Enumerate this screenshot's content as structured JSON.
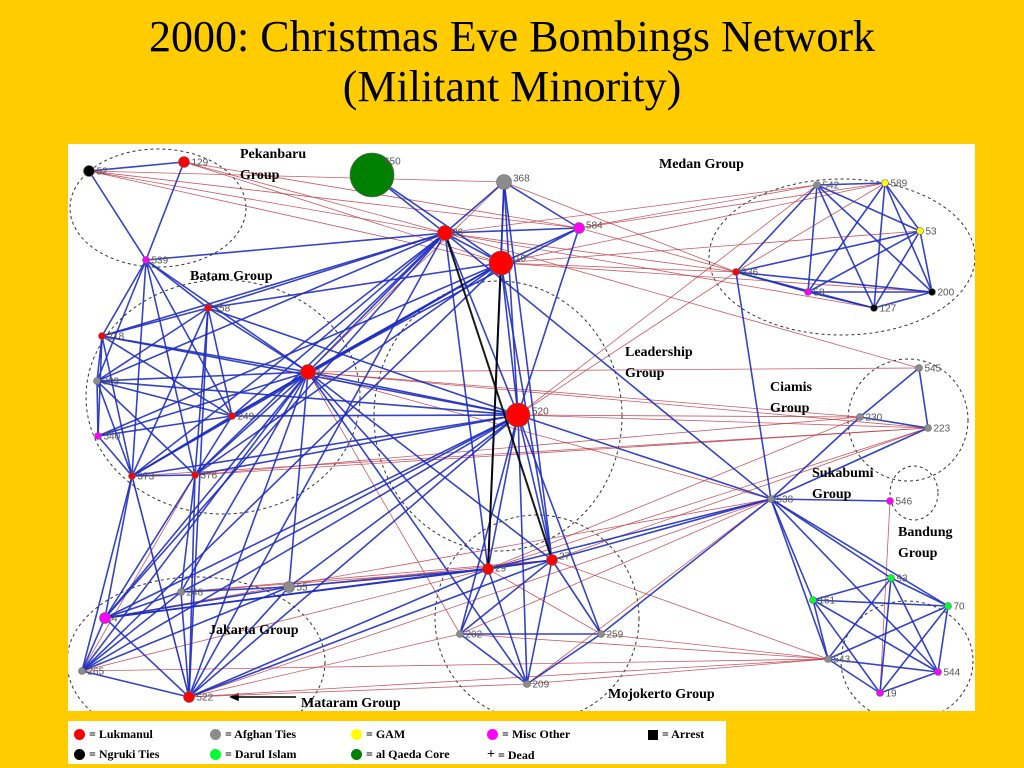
{
  "title": {
    "line1": "2000: Christmas Eve Bombings Network",
    "line2": "(Militant Minority)"
  },
  "groups": [
    {
      "id": "pekanbaru",
      "label_lines": [
        "Pekanbaru",
        "Group"
      ]
    },
    {
      "id": "medan",
      "label_lines": [
        "Medan Group"
      ]
    },
    {
      "id": "batam",
      "label_lines": [
        "Batam Group"
      ]
    },
    {
      "id": "leadership",
      "label_lines": [
        "Leadership",
        "Group"
      ]
    },
    {
      "id": "ciamis",
      "label_lines": [
        "Ciamis",
        "Group"
      ]
    },
    {
      "id": "sukabumi",
      "label_lines": [
        "Sukabumi",
        "Group"
      ]
    },
    {
      "id": "bandung",
      "label_lines": [
        "Bandung",
        "Group"
      ]
    },
    {
      "id": "jakarta",
      "label_lines": [
        "Jakarta Group"
      ]
    },
    {
      "id": "mataram",
      "label_lines": [
        "Mataram Group"
      ]
    },
    {
      "id": "mojokerto",
      "label_lines": [
        "Mojokerto Group"
      ]
    }
  ],
  "node_types": {
    "lukmanul": {
      "color": "#FF0000",
      "label": "= Lukmanul"
    },
    "ngruki": {
      "color": "#000000",
      "label": "= Ngruki Ties"
    },
    "afghan": {
      "color": "#8C8C8C",
      "label": "= Afghan Ties"
    },
    "darul": {
      "color": "#00FF33",
      "label": "= Darul Islam"
    },
    "gam": {
      "color": "#FFFF00",
      "label": "= GAM"
    },
    "alqaeda": {
      "color": "#008000",
      "label": "= al Qaeda Core"
    },
    "misc": {
      "color": "#FF00FF",
      "label": "= Misc Other"
    }
  },
  "legend": {
    "items": [
      {
        "type": "lukmanul",
        "label": "= Lukmanul"
      },
      {
        "type": "afghan",
        "label": "= Afghan Ties"
      },
      {
        "type": "gam",
        "label": "= GAM"
      },
      {
        "type": "misc",
        "label": "= Misc Other"
      },
      {
        "symbol": "square",
        "label": "= Arrest"
      },
      {
        "type": "ngruki",
        "label": "= Ngruki Ties"
      },
      {
        "type": "darul",
        "label": "= Darul Islam"
      },
      {
        "type": "alqaeda",
        "label": "= al Qaeda Core"
      },
      {
        "symbol": "+",
        "label": "= Dead"
      }
    ]
  },
  "nodes": [
    {
      "id": "52",
      "label": "52",
      "type": "ngruki",
      "size": "s"
    },
    {
      "id": "129",
      "label": "129",
      "type": "lukmanul",
      "size": "s"
    },
    {
      "id": "650",
      "label": "650",
      "type": "alqaeda",
      "size": "xl"
    },
    {
      "id": "368",
      "label": "368",
      "type": "afghan",
      "size": "m"
    },
    {
      "id": "26",
      "label": "26",
      "type": "lukmanul",
      "size": "m"
    },
    {
      "id": "584",
      "label": "584",
      "type": "misc",
      "size": "s"
    },
    {
      "id": "10",
      "label": "10",
      "type": "lukmanul",
      "size": "l"
    },
    {
      "id": "539",
      "label": "539",
      "type": "misc",
      "size": "xs"
    },
    {
      "id": "358",
      "label": "358",
      "type": "lukmanul",
      "size": "xs"
    },
    {
      "id": "218",
      "label": "218",
      "type": "lukmanul",
      "size": "xs"
    },
    {
      "id": "303",
      "label": "303",
      "type": "afghan",
      "size": "xs"
    },
    {
      "id": "1",
      "label": "1",
      "type": "lukmanul",
      "size": "m"
    },
    {
      "id": "249",
      "label": "249",
      "type": "lukmanul",
      "size": "xs"
    },
    {
      "id": "540",
      "label": "540",
      "type": "misc",
      "size": "xs"
    },
    {
      "id": "373",
      "label": "373",
      "type": "lukmanul",
      "size": "xs"
    },
    {
      "id": "376",
      "label": "376",
      "type": "lukmanul",
      "size": "xs"
    },
    {
      "id": "520",
      "label": "520",
      "type": "lukmanul",
      "size": "l"
    },
    {
      "id": "542",
      "label": "542",
      "type": "afghan",
      "size": "xs"
    },
    {
      "id": "589",
      "label": "589",
      "type": "gam",
      "size": "xs"
    },
    {
      "id": "53",
      "label": "53",
      "type": "gam",
      "size": "xs"
    },
    {
      "id": "336",
      "label": "336",
      "type": "lukmanul",
      "size": "xs"
    },
    {
      "id": "58",
      "label": "58",
      "type": "misc",
      "size": "xs"
    },
    {
      "id": "200",
      "label": "200",
      "type": "ngruki",
      "size": "xs"
    },
    {
      "id": "127",
      "label": "127",
      "type": "ngruki",
      "size": "xs"
    },
    {
      "id": "545",
      "label": "545",
      "type": "afghan",
      "size": "xs"
    },
    {
      "id": "230",
      "label": "230",
      "type": "afghan",
      "size": "xs"
    },
    {
      "id": "223",
      "label": "223",
      "type": "afghan",
      "size": "xs"
    },
    {
      "id": "538",
      "label": "538",
      "type": "afghan",
      "size": "xs"
    },
    {
      "id": "546",
      "label": "546",
      "type": "misc",
      "size": "xs"
    },
    {
      "id": "248",
      "label": "248",
      "type": "afghan",
      "size": "xs"
    },
    {
      "id": "55",
      "label": "55",
      "type": "afghan",
      "size": "s"
    },
    {
      "id": "4",
      "label": "4",
      "type": "misc",
      "size": "s"
    },
    {
      "id": "265",
      "label": "265",
      "type": "afghan",
      "size": "xs"
    },
    {
      "id": "522",
      "label": "522",
      "type": "lukmanul",
      "size": "s"
    },
    {
      "id": "29",
      "label": "29",
      "type": "lukmanul",
      "size": "s"
    },
    {
      "id": "27",
      "label": "27",
      "type": "lukmanul",
      "size": "s"
    },
    {
      "id": "202",
      "label": "202",
      "type": "afghan",
      "size": "xs"
    },
    {
      "id": "259",
      "label": "259",
      "type": "afghan",
      "size": "xs"
    },
    {
      "id": "209",
      "label": "209",
      "type": "afghan",
      "size": "xs"
    },
    {
      "id": "93",
      "label": "93",
      "type": "darul",
      "size": "xs"
    },
    {
      "id": "161",
      "label": "161",
      "type": "darul",
      "size": "xs"
    },
    {
      "id": "70",
      "label": "70",
      "type": "darul",
      "size": "xs"
    },
    {
      "id": "543",
      "label": "543",
      "type": "afghan",
      "size": "xs"
    },
    {
      "id": "544",
      "label": "544",
      "type": "misc",
      "size": "xs"
    },
    {
      "id": "19",
      "label": "19",
      "type": "misc",
      "size": "xs"
    }
  ],
  "edges": [
    [
      "52",
      "129",
      "blue"
    ],
    [
      "52",
      "539",
      "blue"
    ],
    [
      "129",
      "539",
      "blue"
    ],
    [
      "52",
      "26",
      "red"
    ],
    [
      "129",
      "26",
      "red"
    ],
    [
      "52",
      "584",
      "red"
    ],
    [
      "650",
      "26",
      "blue"
    ],
    [
      "650",
      "10",
      "blue"
    ],
    [
      "368",
      "26",
      "blue"
    ],
    [
      "368",
      "10",
      "blue"
    ],
    [
      "368",
      "584",
      "blue"
    ],
    [
      "368",
      "520",
      "blue"
    ],
    [
      "368",
      "1",
      "red"
    ],
    [
      "368",
      "29",
      "blue"
    ],
    [
      "368",
      "336",
      "red"
    ],
    [
      "26",
      "10",
      "blue"
    ],
    [
      "26",
      "584",
      "blue"
    ],
    [
      "26",
      "520",
      "blue"
    ],
    [
      "26",
      "1",
      "blue"
    ],
    [
      "26",
      "358",
      "blue"
    ],
    [
      "26",
      "539",
      "blue"
    ],
    [
      "26",
      "29",
      "blue"
    ],
    [
      "26",
      "27",
      "black"
    ],
    [
      "26",
      "303",
      "blue"
    ],
    [
      "26",
      "249",
      "blue"
    ],
    [
      "26",
      "376",
      "blue"
    ],
    [
      "26",
      "373",
      "blue"
    ],
    [
      "26",
      "522",
      "blue"
    ],
    [
      "26",
      "4",
      "blue"
    ],
    [
      "26",
      "542",
      "red"
    ],
    [
      "26",
      "336",
      "red"
    ],
    [
      "26",
      "218",
      "blue"
    ],
    [
      "10",
      "520",
      "blue"
    ],
    [
      "10",
      "1",
      "blue"
    ],
    [
      "10",
      "584",
      "blue"
    ],
    [
      "10",
      "29",
      "black"
    ],
    [
      "10",
      "249",
      "blue"
    ],
    [
      "10",
      "376",
      "blue"
    ],
    [
      "10",
      "358",
      "blue"
    ],
    [
      "10",
      "540",
      "blue"
    ],
    [
      "10",
      "373",
      "blue"
    ],
    [
      "10",
      "265",
      "blue"
    ],
    [
      "10",
      "589",
      "red"
    ],
    [
      "10",
      "53",
      "red"
    ],
    [
      "10",
      "200",
      "red"
    ],
    [
      "584",
      "520",
      "blue"
    ],
    [
      "584",
      "1",
      "blue"
    ],
    [
      "584",
      "58",
      "red"
    ],
    [
      "539",
      "358",
      "blue"
    ],
    [
      "539",
      "218",
      "blue"
    ],
    [
      "539",
      "303",
      "blue"
    ],
    [
      "539",
      "1",
      "blue"
    ],
    [
      "539",
      "373",
      "blue"
    ],
    [
      "539",
      "376",
      "blue"
    ],
    [
      "539",
      "249",
      "blue"
    ],
    [
      "358",
      "218",
      "blue"
    ],
    [
      "358",
      "303",
      "blue"
    ],
    [
      "358",
      "1",
      "blue"
    ],
    [
      "358",
      "249",
      "blue"
    ],
    [
      "358",
      "373",
      "blue"
    ],
    [
      "358",
      "376",
      "blue"
    ],
    [
      "358",
      "520",
      "blue"
    ],
    [
      "358",
      "522",
      "blue"
    ],
    [
      "218",
      "303",
      "blue"
    ],
    [
      "218",
      "1",
      "blue"
    ],
    [
      "218",
      "373",
      "blue"
    ],
    [
      "218",
      "249",
      "blue"
    ],
    [
      "218",
      "540",
      "blue"
    ],
    [
      "218",
      "520",
      "blue"
    ],
    [
      "303",
      "1",
      "blue"
    ],
    [
      "303",
      "540",
      "blue"
    ],
    [
      "303",
      "373",
      "blue"
    ],
    [
      "303",
      "376",
      "blue"
    ],
    [
      "303",
      "249",
      "blue"
    ],
    [
      "303",
      "520",
      "blue"
    ],
    [
      "1",
      "249",
      "blue"
    ],
    [
      "1",
      "540",
      "blue"
    ],
    [
      "1",
      "373",
      "blue"
    ],
    [
      "1",
      "376",
      "blue"
    ],
    [
      "1",
      "520",
      "blue"
    ],
    [
      "1",
      "29",
      "blue"
    ],
    [
      "1",
      "27",
      "blue"
    ],
    [
      "1",
      "522",
      "blue"
    ],
    [
      "1",
      "248",
      "blue"
    ],
    [
      "1",
      "4",
      "blue"
    ],
    [
      "1",
      "265",
      "blue"
    ],
    [
      "1",
      "55",
      "blue"
    ],
    [
      "1",
      "202",
      "red"
    ],
    [
      "1",
      "209",
      "blue"
    ],
    [
      "1",
      "538",
      "red"
    ],
    [
      "249",
      "540",
      "blue"
    ],
    [
      "249",
      "373",
      "blue"
    ],
    [
      "249",
      "376",
      "blue"
    ],
    [
      "249",
      "520",
      "blue"
    ],
    [
      "540",
      "373",
      "blue"
    ],
    [
      "373",
      "376",
      "blue"
    ],
    [
      "373",
      "520",
      "blue"
    ],
    [
      "373",
      "522",
      "red"
    ],
    [
      "376",
      "520",
      "blue"
    ],
    [
      "376",
      "522",
      "blue"
    ],
    [
      "376",
      "4",
      "blue"
    ],
    [
      "376",
      "265",
      "red"
    ],
    [
      "520",
      "29",
      "blue"
    ],
    [
      "520",
      "27",
      "blue"
    ],
    [
      "520",
      "522",
      "blue"
    ],
    [
      "520",
      "4",
      "blue"
    ],
    [
      "520",
      "265",
      "blue"
    ],
    [
      "520",
      "248",
      "blue"
    ],
    [
      "520",
      "55",
      "blue"
    ],
    [
      "520",
      "202",
      "blue"
    ],
    [
      "520",
      "259",
      "blue"
    ],
    [
      "520",
      "209",
      "blue"
    ],
    [
      "520",
      "538",
      "blue"
    ],
    [
      "520",
      "223",
      "red"
    ],
    [
      "520",
      "230",
      "red"
    ],
    [
      "520",
      "542",
      "red"
    ],
    [
      "520",
      "336",
      "red"
    ],
    [
      "542",
      "589",
      "blue"
    ],
    [
      "542",
      "53",
      "blue"
    ],
    [
      "542",
      "336",
      "blue"
    ],
    [
      "542",
      "58",
      "blue"
    ],
    [
      "542",
      "200",
      "blue"
    ],
    [
      "542",
      "127",
      "blue"
    ],
    [
      "589",
      "53",
      "blue"
    ],
    [
      "589",
      "58",
      "blue"
    ],
    [
      "589",
      "200",
      "blue"
    ],
    [
      "589",
      "127",
      "blue"
    ],
    [
      "589",
      "336",
      "red"
    ],
    [
      "53",
      "336",
      "blue"
    ],
    [
      "53",
      "58",
      "blue"
    ],
    [
      "53",
      "200",
      "blue"
    ],
    [
      "53",
      "127",
      "blue"
    ],
    [
      "336",
      "58",
      "blue"
    ],
    [
      "336",
      "200",
      "blue"
    ],
    [
      "336",
      "127",
      "blue"
    ],
    [
      "336",
      "538",
      "blue"
    ],
    [
      "58",
      "200",
      "blue"
    ],
    [
      "58",
      "127",
      "blue"
    ],
    [
      "200",
      "127",
      "blue"
    ],
    [
      "545",
      "230",
      "blue"
    ],
    [
      "545",
      "223",
      "blue"
    ],
    [
      "230",
      "223",
      "blue"
    ],
    [
      "230",
      "538",
      "blue"
    ],
    [
      "223",
      "538",
      "blue"
    ],
    [
      "223",
      "1",
      "red"
    ],
    [
      "223",
      "376",
      "red"
    ],
    [
      "223",
      "373",
      "red"
    ],
    [
      "223",
      "29",
      "red"
    ],
    [
      "545",
      "26",
      "red"
    ],
    [
      "538",
      "546",
      "blue"
    ],
    [
      "538",
      "93",
      "blue"
    ],
    [
      "538",
      "161",
      "blue"
    ],
    [
      "538",
      "70",
      "blue"
    ],
    [
      "538",
      "543",
      "blue"
    ],
    [
      "538",
      "544",
      "blue"
    ],
    [
      "538",
      "29",
      "blue"
    ],
    [
      "538",
      "27",
      "blue"
    ],
    [
      "538",
      "202",
      "red"
    ],
    [
      "538",
      "259",
      "blue"
    ],
    [
      "538",
      "209",
      "red"
    ],
    [
      "538",
      "522",
      "red"
    ],
    [
      "538",
      "4",
      "red"
    ],
    [
      "538",
      "26",
      "blue"
    ],
    [
      "546",
      "19",
      "red"
    ],
    [
      "248",
      "55",
      "blue"
    ],
    [
      "248",
      "4",
      "blue"
    ],
    [
      "248",
      "265",
      "blue"
    ],
    [
      "248",
      "522",
      "blue"
    ],
    [
      "248",
      "29",
      "red"
    ],
    [
      "248",
      "27",
      "red"
    ],
    [
      "248",
      "376",
      "blue"
    ],
    [
      "55",
      "4",
      "blue"
    ],
    [
      "55",
      "265",
      "blue"
    ],
    [
      "55",
      "522",
      "blue"
    ],
    [
      "55",
      "27",
      "red"
    ],
    [
      "55",
      "29",
      "blue"
    ],
    [
      "4",
      "265",
      "blue"
    ],
    [
      "4",
      "522",
      "blue"
    ],
    [
      "4",
      "29",
      "blue"
    ],
    [
      "4",
      "27",
      "blue"
    ],
    [
      "4",
      "373",
      "blue"
    ],
    [
      "265",
      "522",
      "blue"
    ],
    [
      "265",
      "29",
      "red"
    ],
    [
      "265",
      "543",
      "red"
    ],
    [
      "265",
      "373",
      "blue"
    ],
    [
      "522",
      "29",
      "blue"
    ],
    [
      "522",
      "27",
      "blue"
    ],
    [
      "522",
      "202",
      "red"
    ],
    [
      "522",
      "209",
      "red"
    ],
    [
      "522",
      "373",
      "blue"
    ],
    [
      "522",
      "543",
      "red"
    ],
    [
      "29",
      "27",
      "blue"
    ],
    [
      "29",
      "202",
      "blue"
    ],
    [
      "29",
      "259",
      "red"
    ],
    [
      "29",
      "209",
      "blue"
    ],
    [
      "27",
      "202",
      "blue"
    ],
    [
      "27",
      "259",
      "blue"
    ],
    [
      "27",
      "209",
      "blue"
    ],
    [
      "27",
      "543",
      "red"
    ],
    [
      "202",
      "259",
      "blue"
    ],
    [
      "202",
      "209",
      "blue"
    ],
    [
      "259",
      "209",
      "blue"
    ],
    [
      "209",
      "543",
      "red"
    ],
    [
      "93",
      "161",
      "blue"
    ],
    [
      "93",
      "70",
      "blue"
    ],
    [
      "93",
      "543",
      "blue"
    ],
    [
      "93",
      "544",
      "blue"
    ],
    [
      "93",
      "19",
      "blue"
    ],
    [
      "161",
      "70",
      "blue"
    ],
    [
      "161",
      "543",
      "blue"
    ],
    [
      "161",
      "544",
      "blue"
    ],
    [
      "161",
      "19",
      "blue"
    ],
    [
      "70",
      "543",
      "blue"
    ],
    [
      "70",
      "544",
      "blue"
    ],
    [
      "70",
      "19",
      "blue"
    ],
    [
      "543",
      "544",
      "blue"
    ],
    [
      "543",
      "19",
      "blue"
    ],
    [
      "544",
      "19",
      "blue"
    ],
    [
      "10",
      "27",
      "blue"
    ],
    [
      "368",
      "27",
      "blue"
    ],
    [
      "52",
      "10",
      "red"
    ],
    [
      "129",
      "10",
      "red"
    ],
    [
      "129",
      "584",
      "red"
    ],
    [
      "52",
      "368",
      "red"
    ],
    [
      "584",
      "542",
      "red"
    ],
    [
      "584",
      "589",
      "red"
    ],
    [
      "10",
      "336",
      "red"
    ],
    [
      "26",
      "127",
      "red"
    ],
    [
      "1",
      "545",
      "red"
    ],
    [
      "1",
      "230",
      "red"
    ],
    [
      "29",
      "230",
      "red"
    ],
    [
      "27",
      "223",
      "red"
    ],
    [
      "376",
      "230",
      "red"
    ],
    [
      "202",
      "543",
      "red"
    ],
    [
      "259",
      "543",
      "red"
    ]
  ]
}
